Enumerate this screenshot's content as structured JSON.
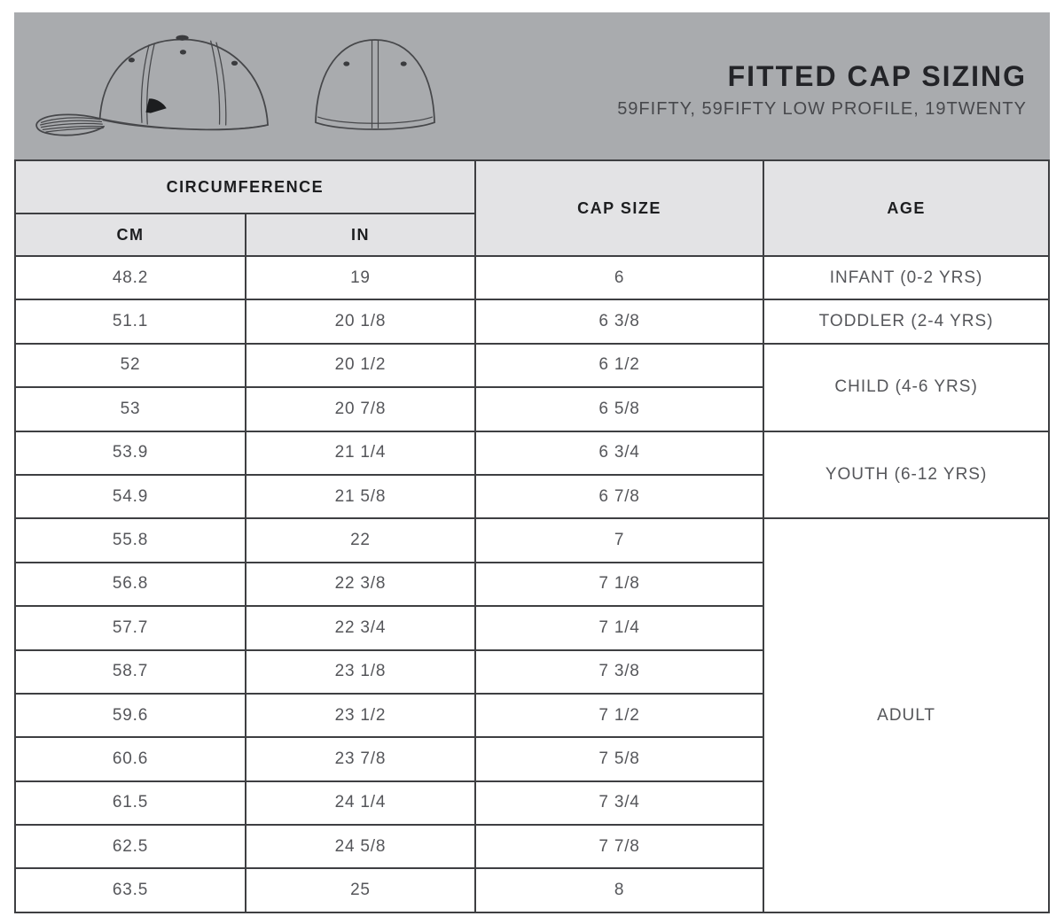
{
  "header": {
    "title": "FITTED CAP SIZING",
    "subtitle": "59FIFTY, 59FIFTY LOW PROFILE, 19TWENTY"
  },
  "illustrations": {
    "side_view": "cap-side-view-line-drawing",
    "back_view": "cap-back-view-line-drawing"
  },
  "table": {
    "group_header": "CIRCUMFERENCE",
    "columns": {
      "cm": "CM",
      "in": "IN",
      "cap_size": "CAP SIZE",
      "age": "AGE"
    },
    "rows": [
      {
        "cm": "48.2",
        "in": "19",
        "cap_size": "6"
      },
      {
        "cm": "51.1",
        "in": "20 1/8",
        "cap_size": "6 3/8"
      },
      {
        "cm": "52",
        "in": "20 1/2",
        "cap_size": "6 1/2"
      },
      {
        "cm": "53",
        "in": "20 7/8",
        "cap_size": "6 5/8"
      },
      {
        "cm": "53.9",
        "in": "21 1/4",
        "cap_size": "6 3/4"
      },
      {
        "cm": "54.9",
        "in": "21 5/8",
        "cap_size": "6 7/8"
      },
      {
        "cm": "55.8",
        "in": "22",
        "cap_size": "7"
      },
      {
        "cm": "56.8",
        "in": "22 3/8",
        "cap_size": "7 1/8"
      },
      {
        "cm": "57.7",
        "in": "22 3/4",
        "cap_size": "7 1/4"
      },
      {
        "cm": "58.7",
        "in": "23 1/8",
        "cap_size": "7 3/8"
      },
      {
        "cm": "59.6",
        "in": "23 1/2",
        "cap_size": "7 1/2"
      },
      {
        "cm": "60.6",
        "in": "23 7/8",
        "cap_size": "7 5/8"
      },
      {
        "cm": "61.5",
        "in": "24 1/4",
        "cap_size": "7 3/4"
      },
      {
        "cm": "62.5",
        "in": "24 5/8",
        "cap_size": "7 7/8"
      },
      {
        "cm": "63.5",
        "in": "25",
        "cap_size": "8"
      }
    ],
    "age_groups": [
      {
        "label": "INFANT (0-2 YRS)",
        "span": 1
      },
      {
        "label": "TODDLER (2-4 YRS)",
        "span": 1
      },
      {
        "label": "CHILD (4-6 YRS)",
        "span": 2
      },
      {
        "label": "YOUTH (6-12 YRS)",
        "span": 2
      },
      {
        "label": "ADULT",
        "span": 9
      }
    ]
  },
  "colors": {
    "banner_bg": "#a9abae",
    "table_header_bg": "#e3e3e5",
    "border": "#3e3f42",
    "data_text": "#55565a",
    "header_text": "#1d1e20",
    "title_text": "#232428",
    "subtitle_text": "#47484c",
    "line": "#46474a"
  }
}
